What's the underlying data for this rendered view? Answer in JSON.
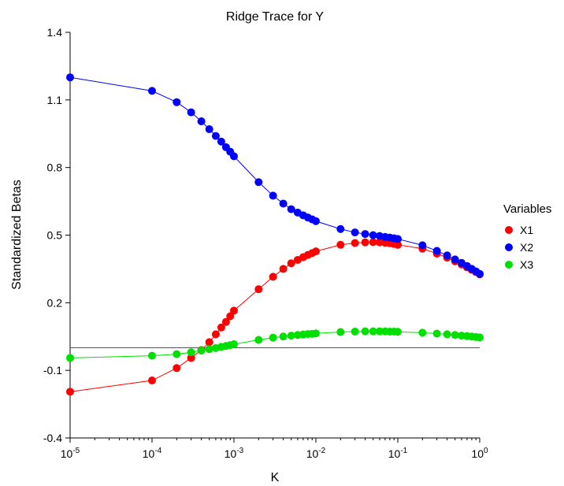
{
  "chart_data": {
    "type": "scatter",
    "title": "Ridge Trace for Y",
    "xlabel": "K",
    "ylabel": "Standardized Betas",
    "x_scale": "log",
    "xlim": [
      1e-05,
      1
    ],
    "ylim": [
      -0.4,
      1.4
    ],
    "y_ticks": [
      "-0.4",
      "-0.1",
      "0.2",
      "0.5",
      "0.8",
      "1.1",
      "1.4"
    ],
    "x_ticks": [
      {
        "base": "10",
        "exp": "-5",
        "value": 1e-05
      },
      {
        "base": "10",
        "exp": "-4",
        "value": 0.0001
      },
      {
        "base": "10",
        "exp": "-3",
        "value": 0.001
      },
      {
        "base": "10",
        "exp": "-2",
        "value": 0.01
      },
      {
        "base": "10",
        "exp": "-1",
        "value": 0.1
      },
      {
        "base": "10",
        "exp": "0",
        "value": 1
      }
    ],
    "grid": false,
    "reference_line": {
      "y": 0,
      "color": "#3b4cc0"
    },
    "legend": {
      "title": "Variables",
      "position": "right"
    },
    "k": [
      1e-05,
      0.0001,
      0.0002,
      0.0003,
      0.0004,
      0.0005,
      0.0006,
      0.0007,
      0.0008,
      0.0009,
      0.001,
      0.002,
      0.003,
      0.004,
      0.005,
      0.006,
      0.007,
      0.008,
      0.009,
      0.01,
      0.02,
      0.03,
      0.04,
      0.05,
      0.06,
      0.07,
      0.08,
      0.09,
      0.1,
      0.2,
      0.3,
      0.4,
      0.5,
      0.6,
      0.7,
      0.8,
      0.9,
      1.0
    ],
    "series": [
      {
        "name": "X1",
        "color": "#ff0000",
        "values": [
          -0.195,
          -0.145,
          -0.09,
          -0.045,
          -0.01,
          0.025,
          0.06,
          0.09,
          0.115,
          0.14,
          0.165,
          0.26,
          0.315,
          0.35,
          0.375,
          0.39,
          0.402,
          0.412,
          0.42,
          0.428,
          0.457,
          0.465,
          0.468,
          0.469,
          0.468,
          0.466,
          0.464,
          0.461,
          0.457,
          0.44,
          0.418,
          0.4,
          0.384,
          0.37,
          0.357,
          0.346,
          0.336,
          0.326
        ]
      },
      {
        "name": "X2",
        "color": "#0000ff",
        "values": [
          1.2,
          1.14,
          1.09,
          1.045,
          1.005,
          0.97,
          0.94,
          0.915,
          0.89,
          0.87,
          0.85,
          0.735,
          0.675,
          0.64,
          0.615,
          0.6,
          0.588,
          0.578,
          0.57,
          0.562,
          0.527,
          0.512,
          0.505,
          0.5,
          0.496,
          0.492,
          0.489,
          0.486,
          0.483,
          0.455,
          0.43,
          0.41,
          0.392,
          0.377,
          0.363,
          0.35,
          0.339,
          0.328
        ]
      },
      {
        "name": "X3",
        "color": "#00e000",
        "values": [
          -0.045,
          -0.035,
          -0.028,
          -0.02,
          -0.012,
          -0.006,
          -0.001,
          0.004,
          0.008,
          0.012,
          0.016,
          0.035,
          0.045,
          0.05,
          0.054,
          0.057,
          0.059,
          0.061,
          0.062,
          0.064,
          0.07,
          0.072,
          0.073,
          0.073,
          0.073,
          0.073,
          0.072,
          0.072,
          0.071,
          0.067,
          0.063,
          0.06,
          0.057,
          0.054,
          0.052,
          0.05,
          0.048,
          0.046
        ]
      }
    ]
  }
}
